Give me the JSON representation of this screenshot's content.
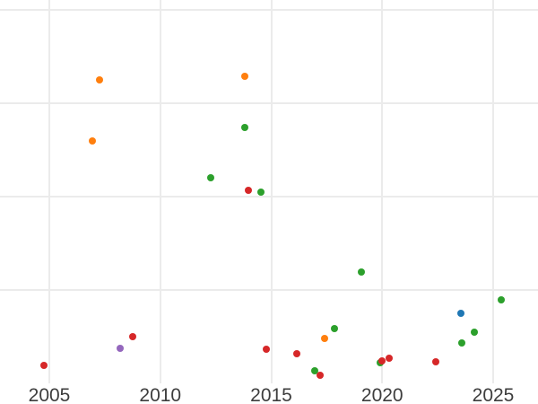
{
  "chart_data": {
    "type": "scatter",
    "title": "",
    "xlabel": "",
    "ylabel": "",
    "grid": true,
    "legend": false,
    "x_tick_labels": [
      "2005",
      "2010",
      "2015",
      "2020",
      "2025"
    ],
    "x_tick_values": [
      2005,
      2010,
      2015,
      2020,
      2025
    ],
    "x_range": [
      2002.8,
      2027.0
    ],
    "y_range": [
      0,
      4.1
    ],
    "y_axis_tick_labels_visible": false,
    "y_gridline_values": [
      1,
      2,
      3,
      4
    ],
    "series": [
      {
        "name": "orange",
        "color": "#ff7f0e",
        "points": [
          {
            "x": 2006.95,
            "y": 2.59
          },
          {
            "x": 2007.26,
            "y": 3.25
          },
          {
            "x": 2013.8,
            "y": 3.28
          },
          {
            "x": 2017.4,
            "y": 0.48
          }
        ]
      },
      {
        "name": "green",
        "color": "#2ca02c",
        "points": [
          {
            "x": 2012.26,
            "y": 2.2
          },
          {
            "x": 2013.81,
            "y": 2.74
          },
          {
            "x": 2014.52,
            "y": 2.04
          },
          {
            "x": 2016.96,
            "y": 0.13
          },
          {
            "x": 2017.84,
            "y": 0.58
          },
          {
            "x": 2019.06,
            "y": 1.19
          },
          {
            "x": 2019.91,
            "y": 0.22
          },
          {
            "x": 2023.59,
            "y": 0.43
          },
          {
            "x": 2024.16,
            "y": 0.54
          },
          {
            "x": 2025.35,
            "y": 0.89
          }
        ]
      },
      {
        "name": "red",
        "color": "#d62728",
        "points": [
          {
            "x": 2004.77,
            "y": 0.19
          },
          {
            "x": 2008.76,
            "y": 0.5
          },
          {
            "x": 2013.97,
            "y": 2.06
          },
          {
            "x": 2014.79,
            "y": 0.36
          },
          {
            "x": 2016.14,
            "y": 0.31
          },
          {
            "x": 2017.19,
            "y": 0.08
          },
          {
            "x": 2020.0,
            "y": 0.24
          },
          {
            "x": 2020.3,
            "y": 0.26
          },
          {
            "x": 2022.41,
            "y": 0.23
          }
        ]
      },
      {
        "name": "purple",
        "color": "#9467bd",
        "points": [
          {
            "x": 2008.2,
            "y": 0.37
          }
        ]
      },
      {
        "name": "blue",
        "color": "#1f77b4",
        "points": [
          {
            "x": 2023.56,
            "y": 0.75
          }
        ]
      }
    ],
    "styles": {
      "background_color": "#ffffff",
      "gridline_color": "#ebebeb",
      "tick_label_color": "#3d3d3d"
    }
  }
}
